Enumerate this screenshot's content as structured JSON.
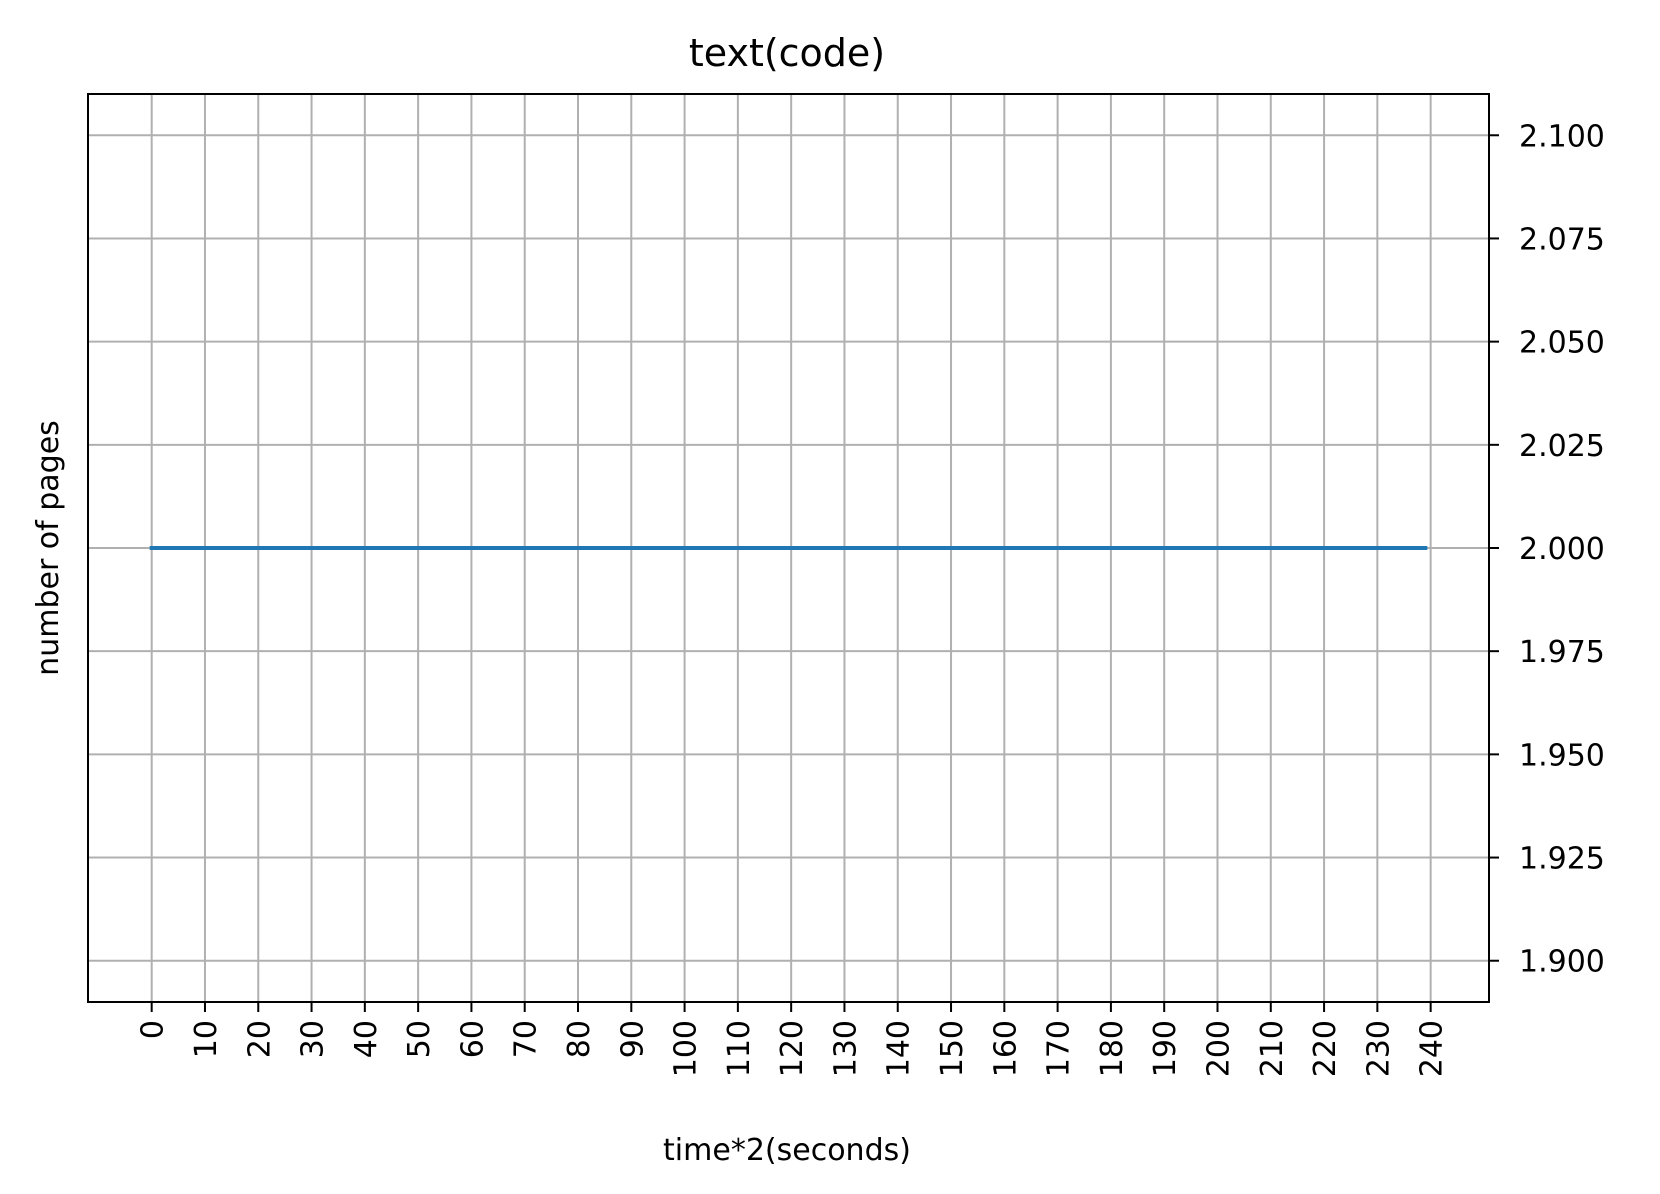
{
  "chart_data": {
    "type": "line",
    "title": "text(code)",
    "xlabel": "time*2(seconds)",
    "ylabel": "number of pages",
    "x_ticks": [
      0,
      10,
      20,
      30,
      40,
      50,
      60,
      70,
      80,
      90,
      100,
      110,
      120,
      130,
      140,
      150,
      160,
      170,
      180,
      190,
      200,
      210,
      220,
      230,
      240
    ],
    "x_tick_labels": [
      "0",
      "10",
      "20",
      "30",
      "40",
      "50",
      "60",
      "70",
      "80",
      "90",
      "100",
      "110",
      "120",
      "130",
      "140",
      "150",
      "160",
      "170",
      "180",
      "190",
      "200",
      "210",
      "220",
      "230",
      "240"
    ],
    "y_ticks": [
      1.9,
      1.925,
      1.95,
      1.975,
      2.0,
      2.025,
      2.05,
      2.075,
      2.1
    ],
    "y_tick_labels": [
      "1.900",
      "1.925",
      "1.950",
      "1.975",
      "2.000",
      "2.025",
      "2.050",
      "2.075",
      "2.100"
    ],
    "xlim": [
      -11.95,
      250.95
    ],
    "ylim": [
      1.89,
      2.11
    ],
    "y_axis_side": "right",
    "grid": true,
    "series": [
      {
        "color": "#1f77b4",
        "x": [
          0,
          239
        ],
        "y": [
          2.0,
          2.0
        ]
      }
    ]
  }
}
